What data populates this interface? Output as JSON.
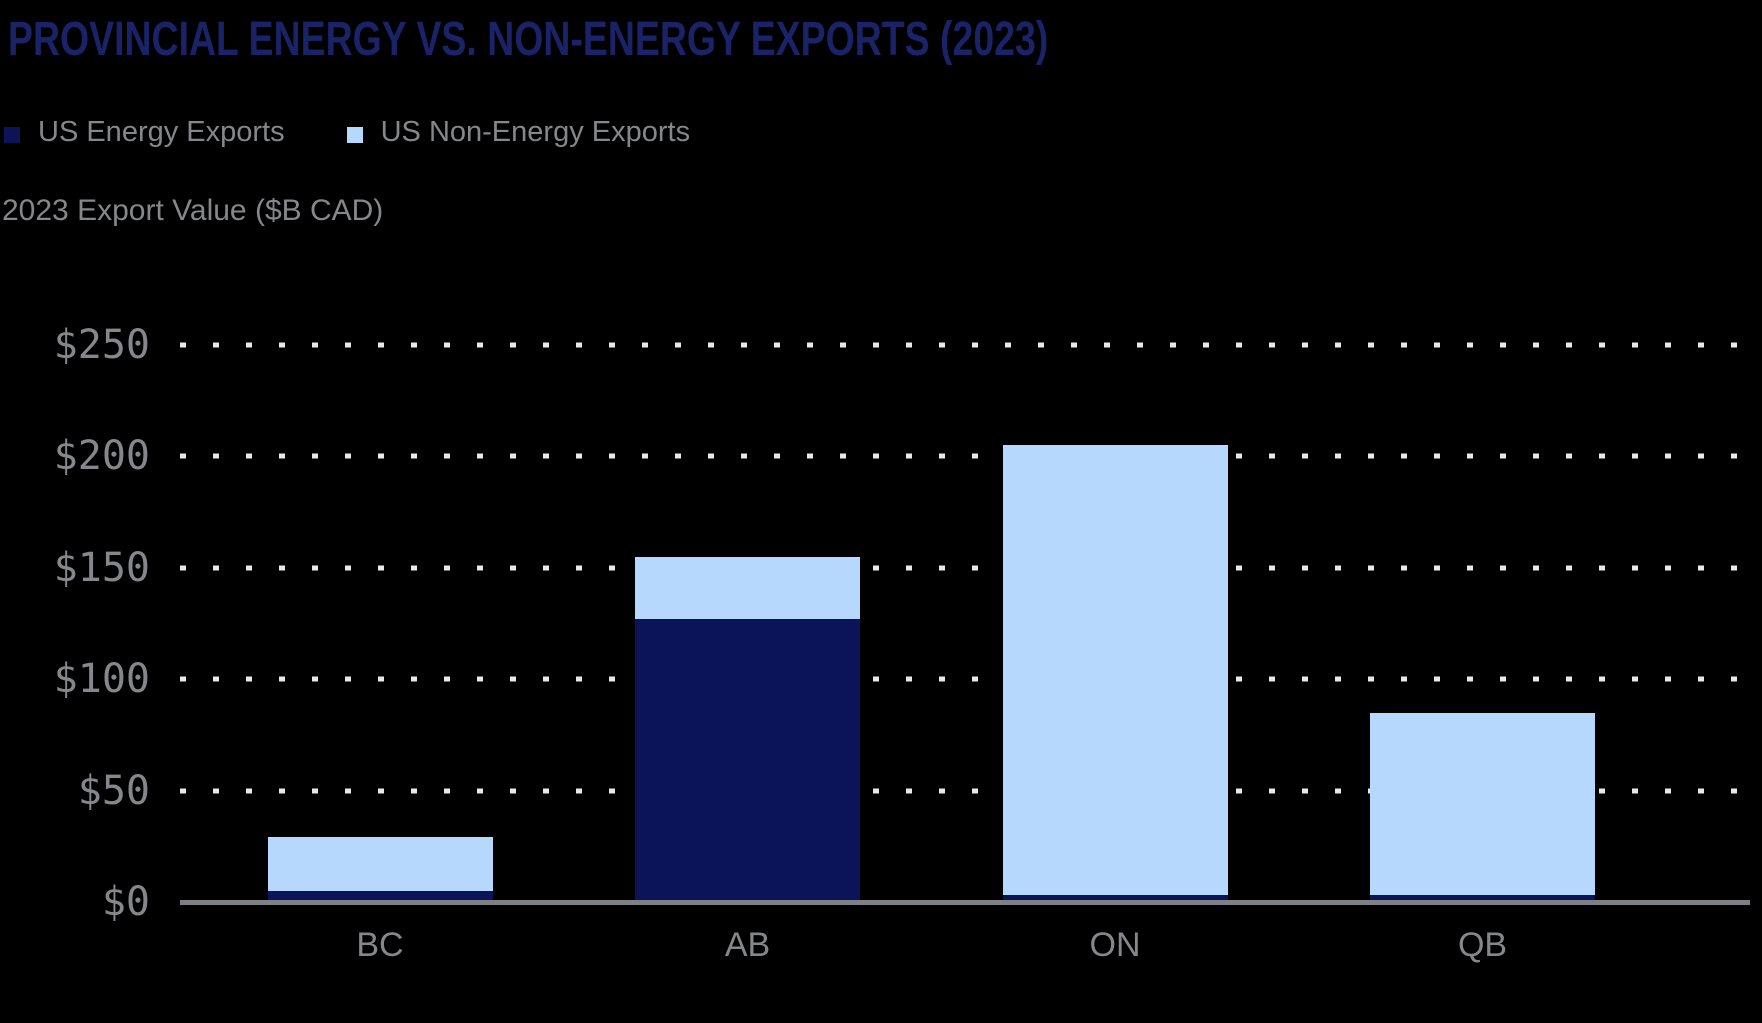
{
  "title": "PROVINCIAL ENERGY VS. NON-ENERGY EXPORTS (2023)",
  "axis_title": "2023 Export Value ($B CAD)",
  "legend": {
    "items": [
      {
        "label": "US Energy Exports",
        "color": "#0c1459"
      },
      {
        "label": "US Non-Energy Exports",
        "color": "#b5d8fc"
      }
    ]
  },
  "chart_data": {
    "type": "bar",
    "stacked": true,
    "title": "PROVINCIAL ENERGY VS. NON-ENERGY EXPORTS (2023)",
    "ylabel": "2023 Export Value ($B CAD)",
    "xlabel": "",
    "categories": [
      "BC",
      "AB",
      "ON",
      "QB"
    ],
    "series": [
      {
        "name": "US Energy Exports",
        "color": "#0c1459",
        "values": [
          5,
          127,
          3,
          3
        ]
      },
      {
        "name": "US Non-Energy Exports",
        "color": "#b5d8fc",
        "values": [
          24,
          28,
          202,
          82
        ]
      }
    ],
    "stack_totals": [
      29,
      155,
      205,
      85
    ],
    "ylim": [
      0,
      250
    ],
    "ytick_values": [
      250,
      200,
      150,
      100,
      50,
      0
    ],
    "ytick_labels": [
      "$250",
      "$200",
      "$150",
      "$100",
      "$50",
      "$0"
    ],
    "grid": "horizontal-dotted",
    "legend_position": "top-left"
  },
  "colors": {
    "background": "#000000",
    "title_text": "#1a2368",
    "body_text": "#85878a",
    "axis_line": "#7d8084",
    "grid_dots": "#e9e9e9",
    "energy_bar": "#0c1459",
    "non_energy_bar": "#b5d8fc"
  }
}
